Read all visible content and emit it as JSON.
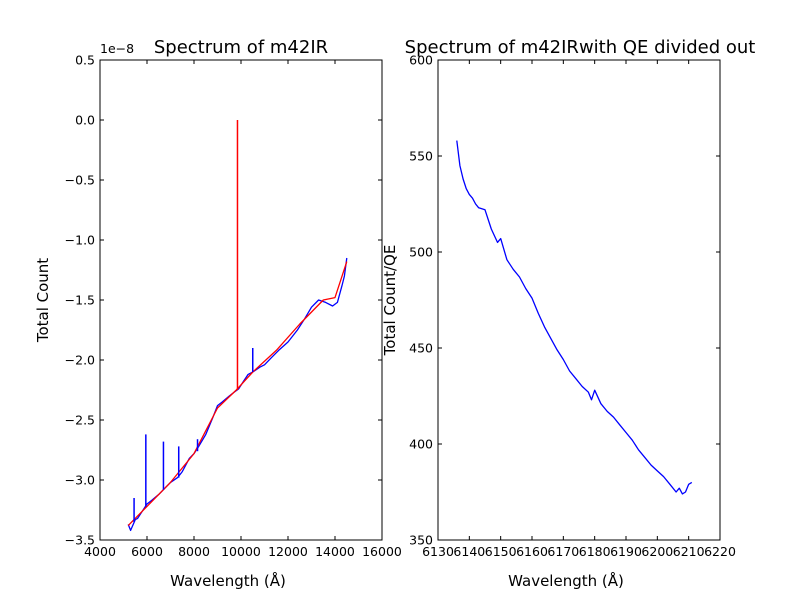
{
  "chart_data": [
    {
      "type": "line",
      "title": "Spectrum of m42IR",
      "xlabel": "Wavelength",
      "xlabel_unit": "(Å)",
      "ylabel": "Total Count",
      "offset_label": "1e−8",
      "xlim": [
        4000,
        16000
      ],
      "ylim": [
        -3.5,
        0.5
      ],
      "xticks": [
        4000,
        6000,
        8000,
        10000,
        12000,
        14000,
        16000
      ],
      "xtick_labels": [
        "4000",
        "6000",
        "8000",
        "10000",
        "12000",
        "14000",
        "16000"
      ],
      "yticks": [
        0.5,
        0.0,
        -0.5,
        -1.0,
        -1.5,
        -2.0,
        -2.5,
        -3.0,
        -3.5
      ],
      "ytick_labels": [
        "0.5",
        "0.0",
        "−0.5",
        "−1.0",
        "−1.5",
        "−2.0",
        "−2.5",
        "−3.0",
        "−3.5"
      ],
      "series": [
        {
          "name": "spectrum",
          "color": "#0000ff",
          "x": [
            5200,
            5300,
            5500,
            5600,
            5800,
            6000,
            6200,
            6500,
            6800,
            7000,
            7300,
            7500,
            7800,
            8000,
            8200,
            8500,
            8800,
            9000,
            9200,
            9500,
            9700,
            9900,
            10100,
            10300,
            10500,
            10800,
            11000,
            11300,
            11600,
            12000,
            12400,
            12700,
            13000,
            13300,
            13600,
            13900,
            14100,
            14300,
            14400,
            14500
          ],
          "y": [
            -3.37,
            -3.42,
            -3.33,
            -3.32,
            -3.26,
            -3.2,
            -3.17,
            -3.12,
            -3.06,
            -3.02,
            -2.98,
            -2.93,
            -2.82,
            -2.78,
            -2.72,
            -2.62,
            -2.48,
            -2.38,
            -2.35,
            -2.3,
            -2.27,
            -2.24,
            -2.18,
            -2.12,
            -2.1,
            -2.06,
            -2.04,
            -1.98,
            -1.92,
            -1.85,
            -1.75,
            -1.66,
            -1.56,
            -1.5,
            -1.52,
            -1.55,
            -1.52,
            -1.38,
            -1.3,
            -1.15
          ]
        },
        {
          "name": "fit",
          "color": "#ff0000",
          "x": [
            5200,
            6000,
            7000,
            8000,
            9000,
            9800,
            10500,
            11500,
            12500,
            13500,
            14000,
            14500
          ],
          "y": [
            -3.38,
            -3.22,
            -3.02,
            -2.78,
            -2.4,
            -2.25,
            -2.1,
            -1.92,
            -1.7,
            -1.5,
            -1.48,
            -1.18
          ]
        }
      ],
      "spikes": [
        {
          "x": 5450,
          "y_base": -3.35,
          "y_peak": -3.15
        },
        {
          "x": 5950,
          "y_base": -3.22,
          "y_peak": -2.62
        },
        {
          "x": 6700,
          "y_base": -3.08,
          "y_peak": -2.68
        },
        {
          "x": 7350,
          "y_base": -2.98,
          "y_peak": -2.72
        },
        {
          "x": 8150,
          "y_base": -2.76,
          "y_peak": -2.66
        },
        {
          "x": 9850,
          "y_base": -2.25,
          "y_peak": 0.0
        },
        {
          "x": 10500,
          "y_base": -2.1,
          "y_peak": -1.9
        }
      ]
    },
    {
      "type": "line",
      "title": "Spectrum of m42IRwith QE divided out",
      "xlabel": "Wavelength",
      "xlabel_unit": "(Å)",
      "ylabel": "Total Count/QE",
      "xlim": [
        6130,
        6220
      ],
      "ylim": [
        350,
        600
      ],
      "xticks": [
        6130,
        6140,
        6150,
        6160,
        6170,
        6180,
        6190,
        6200,
        6210,
        6220
      ],
      "xtick_labels": [
        "6130",
        "6140",
        "6150",
        "6160",
        "6170",
        "6180",
        "6190",
        "6200",
        "6210",
        "6220"
      ],
      "yticks": [
        350,
        400,
        450,
        500,
        550,
        600
      ],
      "ytick_labels": [
        "350",
        "400",
        "450",
        "500",
        "550",
        "600"
      ],
      "series": [
        {
          "name": "corrected",
          "color": "#0000ff",
          "x": [
            6136,
            6137,
            6138,
            6139,
            6140,
            6141,
            6142,
            6143,
            6145,
            6147,
            6149,
            6150,
            6152,
            6154,
            6156,
            6158,
            6160,
            6162,
            6164,
            6166,
            6168,
            6170,
            6172,
            6174,
            6176,
            6178,
            6179,
            6180,
            6182,
            6184,
            6186,
            6188,
            6190,
            6192,
            6194,
            6196,
            6198,
            6200,
            6202,
            6204,
            6206,
            6207,
            6208,
            6209,
            6210,
            6211
          ],
          "y": [
            558,
            545,
            538,
            533,
            530,
            528,
            525,
            523,
            522,
            512,
            505,
            507,
            496,
            491,
            487,
            481,
            476,
            468,
            461,
            455,
            449,
            444,
            438,
            434,
            430,
            427,
            423,
            428,
            421,
            417,
            414,
            410,
            406,
            402,
            397,
            393,
            389,
            386,
            383,
            379,
            375,
            377,
            374,
            375,
            379,
            380
          ]
        }
      ]
    }
  ]
}
